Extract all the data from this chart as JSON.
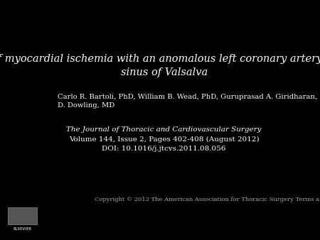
{
  "background_color": "#000000",
  "text_color": "#ffffff",
  "title_line1": "Mechanism of myocardial ischemia with an anomalous left coronary artery from the right",
  "title_line2": "sinus of Valsalva",
  "title_style": "italic",
  "title_fontsize": 10.5,
  "authors_line1": "Carlo R. Bartoli, PhD, William B. Wead, PhD, Guruprasad A. Giridharan, PhD, Sumanth D. Prabhu, MD, Steven C. Koenig, PhD, Robert",
  "authors_line2": "D. Dowling, MD",
  "authors_fontsize": 7.2,
  "journal_name": "The Journal of Thoracic and Cardiovascular Surgery",
  "journal_name_style": "italic",
  "journal_volume": "Volume 144, Issue 2, Pages 402-408 (August 2012)",
  "journal_doi": "DOI: 10.1016/j.jtcvs.2011.08.056",
  "journal_fontsize": 7.5,
  "copyright_text": "Copyright © 2012 The American Association for Thoracic Surgery",
  "copyright_link": "Terms and Conditions",
  "copyright_fontsize": 6.0
}
